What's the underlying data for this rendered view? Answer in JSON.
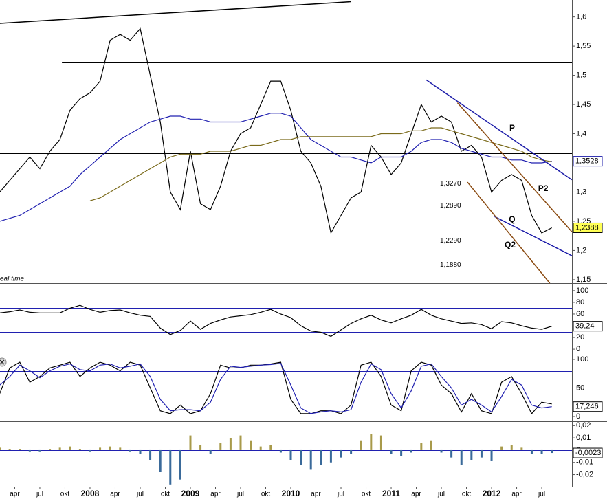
{
  "chart_data": [
    {
      "type": "line",
      "x": [
        2007.1,
        2007.2,
        2007.3,
        2007.4,
        2007.5,
        2007.6,
        2007.7,
        2007.8,
        2007.9,
        2008.0,
        2008.1,
        2008.2,
        2008.3,
        2008.4,
        2008.5,
        2008.6,
        2008.7,
        2008.8,
        2008.9,
        2009.0,
        2009.1,
        2009.2,
        2009.3,
        2009.4,
        2009.5,
        2009.6,
        2009.7,
        2009.8,
        2009.9,
        2010.0,
        2010.1,
        2010.2,
        2010.3,
        2010.4,
        2010.5,
        2010.6,
        2010.7,
        2010.8,
        2010.9,
        2011.0,
        2011.1,
        2011.2,
        2011.3,
        2011.4,
        2011.5,
        2011.6,
        2011.7,
        2011.8,
        2011.9,
        2012.0,
        2012.1,
        2012.2,
        2012.3,
        2012.4,
        2012.5,
        2012.6
      ],
      "xlim": [
        2007.103,
        2012.801
      ],
      "ylim": [
        1.144,
        1.629
      ],
      "yticks": [
        {
          "value": 1.15,
          "label": "1,15"
        },
        {
          "value": 1.2,
          "label": "1,2"
        },
        {
          "value": 1.25,
          "label": "1,25"
        },
        {
          "value": 1.3,
          "label": "1,3"
        },
        {
          "value": 1.35,
          "label": "1,35"
        },
        {
          "value": 1.4,
          "label": "1,4"
        },
        {
          "value": 1.45,
          "label": "1,45"
        },
        {
          "value": 1.5,
          "label": "1,5"
        },
        {
          "value": 1.55,
          "label": "1,55"
        },
        {
          "value": 1.6,
          "label": "1,6"
        }
      ],
      "series": [
        {
          "color": "#000000",
          "values": [
            1.3,
            1.32,
            1.34,
            1.36,
            1.34,
            1.37,
            1.39,
            1.44,
            1.46,
            1.47,
            1.49,
            1.56,
            1.57,
            1.56,
            1.58,
            1.5,
            1.42,
            1.3,
            1.27,
            1.37,
            1.28,
            1.27,
            1.31,
            1.37,
            1.4,
            1.41,
            1.45,
            1.49,
            1.49,
            1.44,
            1.37,
            1.35,
            1.31,
            1.23,
            1.26,
            1.29,
            1.3,
            1.38,
            1.36,
            1.33,
            1.35,
            1.4,
            1.45,
            1.42,
            1.43,
            1.42,
            1.37,
            1.38,
            1.36,
            1.3,
            1.32,
            1.33,
            1.32,
            1.26,
            1.23,
            1.2388
          ]
        },
        {
          "color": "#2020b0",
          "values": [
            1.25,
            1.255,
            1.26,
            1.27,
            1.28,
            1.29,
            1.3,
            1.31,
            1.33,
            1.345,
            1.36,
            1.375,
            1.39,
            1.4,
            1.41,
            1.42,
            1.425,
            1.43,
            1.43,
            1.425,
            1.425,
            1.42,
            1.42,
            1.42,
            1.42,
            1.425,
            1.43,
            1.435,
            1.435,
            1.43,
            1.41,
            1.39,
            1.38,
            1.37,
            1.36,
            1.36,
            1.355,
            1.35,
            1.36,
            1.36,
            1.36,
            1.37,
            1.385,
            1.39,
            1.39,
            1.385,
            1.375,
            1.37,
            1.365,
            1.36,
            1.36,
            1.355,
            1.355,
            1.35,
            1.35,
            1.3528
          ]
        },
        {
          "color": "#7a6a1a",
          "values": [
            null,
            null,
            null,
            null,
            null,
            null,
            null,
            null,
            null,
            1.285,
            1.29,
            1.3,
            1.31,
            1.32,
            1.33,
            1.34,
            1.35,
            1.36,
            1.365,
            1.365,
            1.365,
            1.37,
            1.37,
            1.37,
            1.375,
            1.38,
            1.38,
            1.385,
            1.39,
            1.39,
            1.395,
            1.395,
            1.395,
            1.395,
            1.395,
            1.395,
            1.395,
            1.395,
            1.4,
            1.4,
            1.4,
            1.405,
            1.405,
            1.41,
            1.41,
            1.405,
            1.4,
            1.395,
            1.39,
            1.385,
            1.38,
            1.375,
            1.37,
            1.36,
            1.355,
            1.352
          ]
        }
      ],
      "hlines": [
        {
          "value": 1.523,
          "from": 2007.72
        },
        {
          "value": 1.367
        },
        {
          "value": 1.327,
          "label": "1,3270"
        },
        {
          "value": 1.289,
          "label": "1,2890"
        },
        {
          "value": 1.229,
          "label": "1,2290"
        },
        {
          "value": 1.188,
          "label": "1,1880"
        }
      ],
      "trendlines": [
        {
          "from": [
            2007.103,
            1.589
          ],
          "to": [
            2010.596,
            1.626
          ],
          "color": "#000000"
        },
        {
          "from": [
            2011.35,
            1.492
          ],
          "to": [
            2012.8,
            1.321
          ],
          "color": "#1a1aa8",
          "label": "P",
          "label_at": [
            2012.205,
            1.409
          ]
        },
        {
          "from": [
            2012.03,
            1.258
          ],
          "to": [
            2012.8,
            1.191
          ],
          "color": "#1a1aa8",
          "label": "Q",
          "label_at": [
            2012.205,
            1.2525
          ]
        },
        {
          "from": [
            2011.66,
            1.453
          ],
          "to": [
            2012.8,
            1.232
          ],
          "color": "#8a4a10",
          "label": "P2",
          "label_at": [
            2012.514,
            1.3055
          ]
        },
        {
          "from": [
            2011.76,
            1.317
          ],
          "to": [
            2012.58,
            1.144
          ],
          "color": "#8a4a10",
          "label": "Q2",
          "label_at": [
            2012.185,
            1.209
          ]
        }
      ],
      "value_boxes": [
        {
          "value": 1.3528,
          "label": "1,3528",
          "color": "#1a1aa8",
          "background": "#ffffff"
        },
        {
          "value": 1.2388,
          "label": "1,2388",
          "color": "#000000",
          "background": "#ffff55"
        }
      ],
      "note": "eal time"
    },
    {
      "type": "line",
      "x": [
        2007.1,
        2007.2,
        2007.3,
        2007.4,
        2007.5,
        2007.6,
        2007.7,
        2007.8,
        2007.9,
        2008.0,
        2008.1,
        2008.2,
        2008.3,
        2008.4,
        2008.5,
        2008.6,
        2008.7,
        2008.8,
        2008.9,
        2009.0,
        2009.1,
        2009.2,
        2009.3,
        2009.4,
        2009.5,
        2009.6,
        2009.7,
        2009.8,
        2009.9,
        2010.0,
        2010.1,
        2010.2,
        2010.3,
        2010.4,
        2010.5,
        2010.6,
        2010.7,
        2010.8,
        2010.9,
        2011.0,
        2011.1,
        2011.2,
        2011.3,
        2011.4,
        2011.5,
        2011.6,
        2011.7,
        2011.8,
        2011.9,
        2012.0,
        2012.1,
        2012.2,
        2012.3,
        2012.4,
        2012.5,
        2012.6
      ],
      "xlim": [
        2007.103,
        2012.801
      ],
      "ylim": [
        -8.1,
        111.6
      ],
      "yticks": [
        0,
        20,
        40,
        60,
        80,
        100
      ],
      "series": [
        {
          "color": "#000000",
          "values": [
            62,
            64,
            67,
            63,
            62,
            62,
            62,
            70,
            75,
            68,
            63,
            66,
            67,
            62,
            58,
            56,
            36,
            25,
            32,
            48,
            34,
            44,
            50,
            55,
            57,
            59,
            63,
            68,
            60,
            54,
            40,
            31,
            29,
            22,
            33,
            44,
            52,
            58,
            50,
            45,
            52,
            58,
            68,
            58,
            52,
            48,
            44,
            45,
            42,
            35,
            47,
            45,
            40,
            36,
            34,
            39.24
          ]
        }
      ],
      "hlines": [
        {
          "value": 70,
          "color": "#2020b0"
        },
        {
          "value": 30,
          "color": "#2020b0"
        }
      ],
      "value_boxes": [
        {
          "value": 39.24,
          "label": "39,24",
          "color": "#000000",
          "background": "#ffffff"
        }
      ]
    },
    {
      "type": "line",
      "x": [
        2007.1,
        2007.2,
        2007.3,
        2007.4,
        2007.5,
        2007.6,
        2007.7,
        2007.8,
        2007.9,
        2008.0,
        2008.1,
        2008.2,
        2008.3,
        2008.4,
        2008.5,
        2008.6,
        2008.7,
        2008.8,
        2008.9,
        2009.0,
        2009.1,
        2009.2,
        2009.3,
        2009.4,
        2009.5,
        2009.6,
        2009.7,
        2009.8,
        2009.9,
        2010.0,
        2010.1,
        2010.2,
        2010.3,
        2010.4,
        2010.5,
        2010.6,
        2010.7,
        2010.8,
        2010.9,
        2011.0,
        2011.1,
        2011.2,
        2011.3,
        2011.4,
        2011.5,
        2011.6,
        2011.7,
        2011.8,
        2011.9,
        2012.0,
        2012.1,
        2012.2,
        2012.3,
        2012.4,
        2012.5,
        2012.6
      ],
      "xlim": [
        2007.103,
        2012.801
      ],
      "ylim": [
        -7.2,
        107.2
      ],
      "yticks": [
        0,
        50,
        100
      ],
      "series": [
        {
          "color": "#000000",
          "values": [
            40,
            85,
            95,
            60,
            70,
            85,
            90,
            95,
            70,
            85,
            95,
            90,
            80,
            95,
            90,
            50,
            10,
            5,
            20,
            5,
            10,
            40,
            90,
            85,
            85,
            90,
            90,
            92,
            95,
            30,
            5,
            5,
            10,
            10,
            5,
            20,
            90,
            95,
            70,
            20,
            10,
            80,
            95,
            90,
            55,
            40,
            8,
            40,
            10,
            5,
            60,
            70,
            40,
            5,
            25,
            22
          ]
        },
        {
          "color": "#2020b0",
          "values": [
            55,
            70,
            90,
            80,
            68,
            80,
            88,
            92,
            82,
            80,
            90,
            92,
            85,
            88,
            92,
            70,
            30,
            10,
            12,
            12,
            10,
            25,
            65,
            88,
            86,
            88,
            90,
            91,
            93,
            55,
            15,
            5,
            8,
            10,
            8,
            12,
            60,
            92,
            82,
            40,
            15,
            45,
            88,
            92,
            70,
            50,
            20,
            30,
            20,
            8,
            35,
            65,
            55,
            20,
            15,
            17.246
          ]
        }
      ],
      "hlines": [
        {
          "value": 80,
          "color": "#2020b0"
        },
        {
          "value": 20,
          "color": "#2020b0"
        }
      ],
      "value_boxes": [
        {
          "value": 17.246,
          "label": "17,246",
          "color": "#000000",
          "background": "#ffffff"
        }
      ]
    },
    {
      "type": "bar",
      "x": [
        2007.1,
        2007.2,
        2007.3,
        2007.4,
        2007.5,
        2007.6,
        2007.7,
        2007.8,
        2007.9,
        2008.0,
        2008.1,
        2008.2,
        2008.3,
        2008.4,
        2008.5,
        2008.6,
        2008.7,
        2008.8,
        2008.9,
        2009.0,
        2009.1,
        2009.2,
        2009.3,
        2009.4,
        2009.5,
        2009.6,
        2009.7,
        2009.8,
        2009.9,
        2010.0,
        2010.1,
        2010.2,
        2010.3,
        2010.4,
        2010.5,
        2010.6,
        2010.7,
        2010.8,
        2010.9,
        2011.0,
        2011.1,
        2011.2,
        2011.3,
        2011.4,
        2011.5,
        2011.6,
        2011.7,
        2011.8,
        2011.9,
        2012.0,
        2012.1,
        2012.2,
        2012.3,
        2012.4,
        2012.5,
        2012.6
      ],
      "xlim": [
        2007.103,
        2012.801
      ],
      "ylim": [
        -0.0298,
        0.023
      ],
      "yticks": [
        {
          "value": -0.02,
          "label": "-0,02"
        },
        {
          "value": -0.01,
          "label": "-0,01"
        },
        0,
        {
          "value": 0.01,
          "label": "0,01"
        },
        {
          "value": 0.02,
          "label": "0,02"
        }
      ],
      "values": [
        0.002,
        0.001,
        0.001,
        -0.001,
        -0.001,
        0.0005,
        0.002,
        0.003,
        0.001,
        -0.001,
        0.002,
        0.003,
        0.002,
        -0.001,
        -0.003,
        -0.008,
        -0.018,
        -0.028,
        -0.024,
        0.012,
        0.004,
        -0.003,
        0.006,
        0.01,
        0.012,
        0.008,
        0.003,
        0.004,
        -0.002,
        -0.008,
        -0.012,
        -0.016,
        -0.012,
        -0.01,
        -0.006,
        -0.003,
        0.008,
        0.013,
        0.012,
        -0.003,
        -0.005,
        -0.002,
        0.006,
        0.008,
        -0.002,
        -0.006,
        -0.012,
        -0.008,
        -0.006,
        -0.009,
        0.003,
        0.004,
        0.002,
        -0.003,
        -0.003,
        -0.0023
      ],
      "positive_color": "#a89a4a",
      "negative_color": "#3a6a9a",
      "hlines": [
        {
          "value": 0,
          "color": "#2020b0"
        }
      ],
      "value_boxes": [
        {
          "value": -0.0023,
          "label": "-0,0023",
          "color": "#000000",
          "background": "#ffffff"
        }
      ],
      "xticks": [
        {
          "value": 2007.25,
          "label": "apr"
        },
        {
          "value": 2007.5,
          "label": "jul"
        },
        {
          "value": 2007.75,
          "label": "okt"
        },
        2008,
        {
          "value": 2008.25,
          "label": "apr"
        },
        {
          "value": 2008.5,
          "label": "jul"
        },
        {
          "value": 2008.75,
          "label": "okt"
        },
        2009,
        {
          "value": 2009.25,
          "label": "apr"
        },
        {
          "value": 2009.5,
          "label": "jul"
        },
        {
          "value": 2009.75,
          "label": "okt"
        },
        2010,
        {
          "value": 2010.25,
          "label": "apr"
        },
        {
          "value": 2010.5,
          "label": "jul"
        },
        {
          "value": 2010.75,
          "label": "okt"
        },
        2011,
        {
          "value": 2011.25,
          "label": "apr"
        },
        {
          "value": 2011.5,
          "label": "jul"
        },
        {
          "value": 2011.75,
          "label": "okt"
        },
        2012,
        {
          "value": 2012.25,
          "label": "apr"
        },
        {
          "value": 2012.5,
          "label": "jul"
        }
      ]
    }
  ]
}
